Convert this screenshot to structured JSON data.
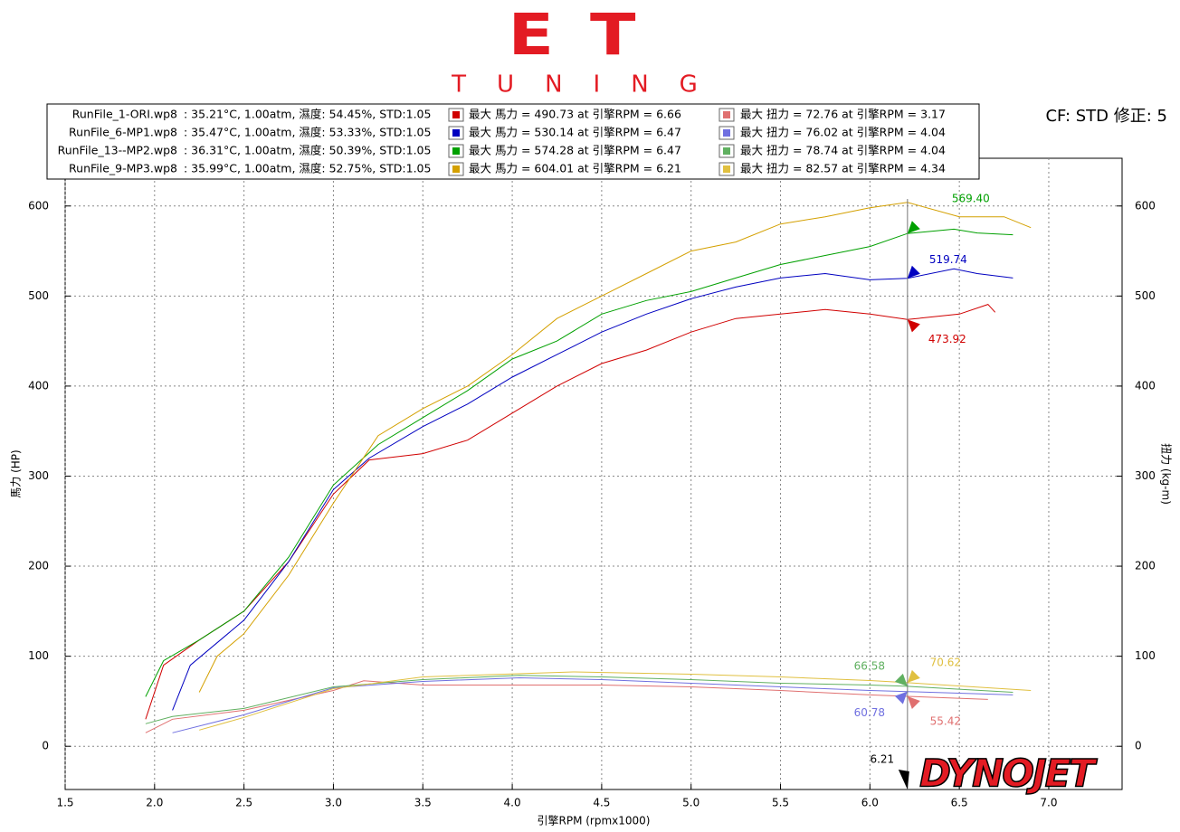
{
  "logo": {
    "title": "ET",
    "subtitle": "TUNING"
  },
  "cf_label": "CF: STD 修正: 5",
  "chart_data": {
    "type": "line",
    "x_label": "引擎RPM (rpmx1000)",
    "y_label": "馬力 (HP)",
    "y2_label": "扭力 (kg-m)",
    "xlim": [
      1.5,
      7.41
    ],
    "ylim": [
      -48,
      653
    ],
    "y2lim": [
      -48,
      653
    ],
    "xticks": [
      {
        "value": 1.5,
        "label": "1.5"
      },
      {
        "value": 2,
        "label": "2.0"
      },
      {
        "value": 2.5,
        "label": "2.5"
      },
      {
        "value": 3,
        "label": "3.0"
      },
      {
        "value": 3.5,
        "label": "3.5"
      },
      {
        "value": 4,
        "label": "4.0"
      },
      {
        "value": 4.5,
        "label": "4.5"
      },
      {
        "value": 5,
        "label": "5.0"
      },
      {
        "value": 5.5,
        "label": "5.5"
      },
      {
        "value": 6,
        "label": "6.0"
      },
      {
        "value": 6.5,
        "label": "6.5"
      },
      {
        "value": 7,
        "label": "7.0"
      }
    ],
    "yticks": [
      0,
      100,
      200,
      300,
      400,
      500,
      600
    ],
    "y2ticks": [
      0,
      100,
      200,
      300,
      400,
      500,
      600
    ],
    "grid": true,
    "series": [
      {
        "name": "RunFile_1-ORI.wp8",
        "conditions": ": 35.21°C, 1.00atm, 濕度: 54.45%, STD:1.05",
        "peak": "最大 馬力 = 490.73 at 引擎RPM = 6.66",
        "color": "#d00000",
        "x": [
          1.95,
          2.05,
          2.25,
          2.5,
          2.75,
          3.0,
          3.2,
          3.5,
          3.75,
          4.0,
          4.25,
          4.5,
          4.75,
          5.0,
          5.25,
          5.5,
          5.75,
          6.0,
          6.21,
          6.5,
          6.66,
          6.7
        ],
        "values": [
          30,
          90,
          118,
          150,
          205,
          280,
          318,
          325,
          340,
          370,
          400,
          425,
          440,
          460,
          475,
          480,
          485,
          480,
          473.92,
          480,
          490.73,
          482
        ]
      },
      {
        "name": "RunFile_6-MP1.wp8",
        "conditions": ": 35.47°C, 1.00atm, 濕度: 53.33%, STD:1.05",
        "peak": "最大 馬力 = 530.14 at 引擎RPM = 6.47",
        "color": "#0000c0",
        "x": [
          2.1,
          2.2,
          2.5,
          2.75,
          3.0,
          3.2,
          3.5,
          3.75,
          4.0,
          4.25,
          4.5,
          4.75,
          5.0,
          5.25,
          5.5,
          5.75,
          6.0,
          6.21,
          6.47,
          6.6,
          6.8
        ],
        "values": [
          40,
          90,
          140,
          205,
          285,
          320,
          355,
          380,
          410,
          435,
          460,
          480,
          497,
          510,
          520,
          525,
          518,
          519.74,
          530.14,
          525,
          520
        ]
      },
      {
        "name": "RunFile_13--MP2.wp8",
        "conditions": ": 36.31°C, 1.00atm, 濕度: 50.39%, STD:1.05",
        "peak": "最大 馬力 = 574.28 at 引擎RPM = 6.47",
        "color": "#00a000",
        "x": [
          1.95,
          2.05,
          2.25,
          2.5,
          2.75,
          3.0,
          3.25,
          3.5,
          3.75,
          4.0,
          4.25,
          4.5,
          4.75,
          5.0,
          5.25,
          5.5,
          5.75,
          6.0,
          6.21,
          6.47,
          6.6,
          6.8
        ],
        "values": [
          55,
          95,
          118,
          150,
          210,
          290,
          335,
          365,
          395,
          430,
          450,
          480,
          495,
          505,
          520,
          535,
          545,
          555,
          569.4,
          574.28,
          570,
          568
        ]
      },
      {
        "name": "RunFile_9-MP3.wp8",
        "conditions": ": 35.99°C, 1.00atm, 濕度: 52.75%, STD:1.05",
        "peak": "最大 馬力 = 604.01 at 引擎RPM = 6.21",
        "color": "#d4a000",
        "x": [
          2.25,
          2.35,
          2.5,
          2.75,
          3.0,
          3.25,
          3.5,
          3.75,
          4.0,
          4.25,
          4.5,
          4.75,
          5.0,
          5.25,
          5.5,
          5.75,
          6.0,
          6.21,
          6.5,
          6.75,
          6.9
        ],
        "values": [
          60,
          100,
          125,
          190,
          270,
          345,
          375,
          400,
          435,
          475,
          500,
          525,
          550,
          560,
          580,
          588,
          598,
          604.01,
          588,
          588,
          576
        ]
      }
    ],
    "torque_series": [
      {
        "peak": "最大 扭力 = 72.76 at 引擎RPM = 3.17",
        "color": "#e07070",
        "axis": "y2",
        "x": [
          1.95,
          2.1,
          2.5,
          3.0,
          3.17,
          3.5,
          4.0,
          4.5,
          5.0,
          5.5,
          6.0,
          6.21,
          6.66
        ],
        "values": [
          15,
          30,
          40,
          62,
          72.76,
          68,
          68,
          68,
          66,
          62,
          57,
          55.42,
          52
        ]
      },
      {
        "peak": "最大 扭力 = 76.02 at 引擎RPM = 4.04",
        "color": "#7070e0",
        "axis": "y2",
        "x": [
          2.1,
          2.5,
          3.0,
          3.5,
          4.04,
          4.5,
          5.0,
          5.5,
          6.0,
          6.21,
          6.8
        ],
        "values": [
          15,
          35,
          65,
          72,
          76.02,
          74,
          70,
          66,
          62,
          60.78,
          57
        ]
      },
      {
        "peak": "最大 扭力 = 78.74 at 引擎RPM = 4.04",
        "color": "#60b060",
        "axis": "y2",
        "x": [
          1.95,
          2.1,
          2.5,
          3.0,
          3.5,
          4.04,
          4.5,
          5.0,
          5.5,
          6.0,
          6.21,
          6.8
        ],
        "values": [
          25,
          33,
          42,
          66,
          74,
          78.74,
          77,
          74,
          70,
          68,
          66.58,
          60
        ]
      },
      {
        "peak": "最大 扭力 = 82.57 at 引擎RPM = 4.34",
        "color": "#e0c040",
        "axis": "y2",
        "x": [
          2.25,
          2.5,
          3.0,
          3.5,
          4.34,
          5.0,
          5.5,
          6.0,
          6.21,
          6.9
        ],
        "values": [
          18,
          32,
          64,
          77,
          82.57,
          80,
          77,
          73,
          70.62,
          62
        ]
      }
    ],
    "cursor": {
      "x": 6.21,
      "readings": [
        {
          "value": 569.4,
          "label": "569.40",
          "color": "#00a000"
        },
        {
          "value": 519.74,
          "label": "519.74",
          "color": "#0000c0"
        },
        {
          "value": 473.92,
          "label": "473.92",
          "color": "#d00000"
        },
        {
          "value": 66.58,
          "label": "66.58",
          "color": "#60b060"
        },
        {
          "value": 70.62,
          "label": "70.62",
          "color": "#e0c040"
        },
        {
          "value": 60.78,
          "label": "60.78",
          "color": "#7070e0"
        },
        {
          "value": 55.42,
          "label": "55.42",
          "color": "#e07070"
        }
      ]
    },
    "watermark": "DYNOJET"
  }
}
